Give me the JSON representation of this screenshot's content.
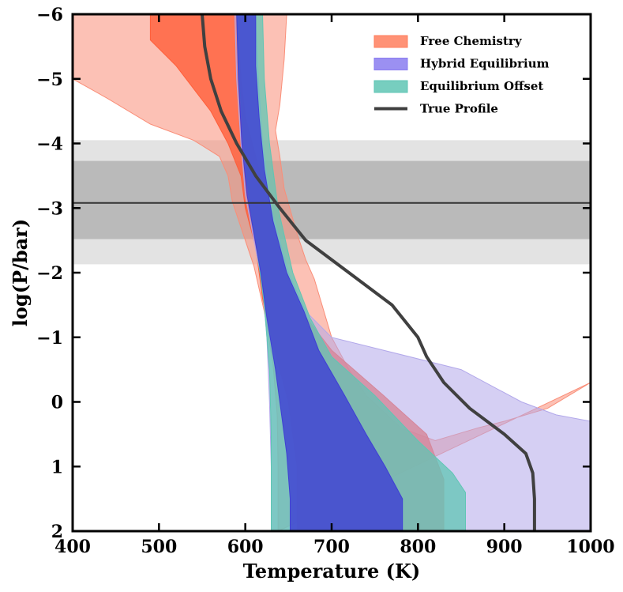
{
  "chart_data": {
    "type": "area",
    "title": "",
    "xlabel": "Temperature (K)",
    "ylabel": "log(P/bar)",
    "xlim": [
      400,
      1000
    ],
    "ylim": [
      2,
      -6
    ],
    "xticks": [
      400,
      500,
      600,
      700,
      800,
      900,
      1000
    ],
    "xtick_labels": [
      "400",
      "500",
      "600",
      "700",
      "800",
      "900",
      "1000"
    ],
    "yticks": [
      -6,
      -5,
      -4,
      -3,
      -2,
      -1,
      0,
      1,
      2
    ],
    "ytick_labels": [
      "−6",
      "−5",
      "−4",
      "−3",
      "−2",
      "−1",
      "0",
      "1",
      "2"
    ],
    "legend_position": "top-right",
    "legend": [
      {
        "label": "Free Chemistry",
        "kind": "patch",
        "color": "#ff7f5e"
      },
      {
        "label": "Hybrid Equilibrium",
        "kind": "patch",
        "color": "#8a7cf0"
      },
      {
        "label": "Equilibrium Offset",
        "kind": "patch",
        "color": "#5fc6b4"
      },
      {
        "label": "True Profile",
        "kind": "line",
        "color": "#404040"
      }
    ],
    "horizontal_bands": [
      {
        "y0": -4.05,
        "y1": -2.13,
        "color": "#d4d4d4",
        "opacity": 0.65
      },
      {
        "y0": -3.73,
        "y1": -2.52,
        "color": "#a8a8a8",
        "opacity": 0.7
      }
    ],
    "horizontal_line": {
      "y": -3.08,
      "color": "#333333"
    },
    "bands": [
      {
        "name": "Free Chemistry outer",
        "color": "#fa8e78",
        "opacity": 0.55,
        "left": [
          [
            400,
            -6
          ],
          [
            400,
            -5
          ],
          [
            440,
            -4.7
          ],
          [
            490,
            -4.3
          ],
          [
            540,
            -4.05
          ],
          [
            570,
            -3.8
          ],
          [
            580,
            -3.5
          ],
          [
            585,
            -3.1
          ],
          [
            595,
            -2.7
          ],
          [
            610,
            -2.1
          ],
          [
            622,
            -1.4
          ],
          [
            632,
            -0.6
          ],
          [
            637,
            0.2
          ],
          [
            638,
            1
          ],
          [
            638,
            2
          ]
        ],
        "right": [
          [
            1000,
            -0.3
          ],
          [
            950,
            0.1
          ],
          [
            900,
            0.3
          ],
          [
            870,
            0.4
          ],
          [
            820,
            0.6
          ],
          [
            780,
            0.4
          ],
          [
            740,
            -0.1
          ],
          [
            720,
            -0.5
          ],
          [
            700,
            -1
          ],
          [
            680,
            -1.9
          ],
          [
            670,
            -2.2
          ],
          [
            660,
            -2.6
          ],
          [
            645,
            -3.3
          ],
          [
            640,
            -3.8
          ],
          [
            635,
            -4.2
          ],
          [
            640,
            -4.6
          ],
          [
            645,
            -5.3
          ],
          [
            648,
            -6
          ]
        ]
      },
      {
        "name": "Free Chemistry inner",
        "color": "#ff5e3a",
        "opacity": 0.8,
        "left": [
          [
            490,
            -6
          ],
          [
            490,
            -5.6
          ],
          [
            520,
            -5.2
          ],
          [
            560,
            -4.5
          ],
          [
            580,
            -4
          ],
          [
            595,
            -3.5
          ],
          [
            600,
            -3
          ],
          [
            612,
            -2.4
          ],
          [
            620,
            -1.6
          ],
          [
            630,
            -1
          ],
          [
            640,
            -0.5
          ],
          [
            650,
            0
          ],
          [
            655,
            0.5
          ],
          [
            660,
            1
          ],
          [
            660,
            1.8
          ],
          [
            660,
            2
          ]
        ],
        "right": [
          [
            830,
            2
          ],
          [
            830,
            1.2
          ],
          [
            810,
            0.5
          ],
          [
            760,
            -0.1
          ],
          [
            700,
            -0.8
          ],
          [
            665,
            -1.4
          ],
          [
            650,
            -1.9
          ],
          [
            640,
            -2.4
          ],
          [
            630,
            -2.9
          ],
          [
            618,
            -3.5
          ],
          [
            608,
            -4
          ],
          [
            600,
            -4.4
          ],
          [
            595,
            -5
          ],
          [
            590,
            -6
          ]
        ]
      },
      {
        "name": "Hybrid Equilibrium outer",
        "color": "#b2a8ea",
        "opacity": 0.55,
        "left": [
          [
            588,
            -6
          ],
          [
            590,
            -5
          ],
          [
            595,
            -4
          ],
          [
            600,
            -3.2
          ],
          [
            610,
            -2.5
          ],
          [
            620,
            -1.8
          ],
          [
            625,
            -1
          ],
          [
            628,
            0
          ],
          [
            630,
            1
          ],
          [
            630,
            2
          ]
        ],
        "right": [
          [
            1000,
            2
          ],
          [
            1000,
            0.3
          ],
          [
            960,
            0.2
          ],
          [
            920,
            0
          ],
          [
            850,
            -0.5
          ],
          [
            760,
            -0.8
          ],
          [
            700,
            -1
          ],
          [
            670,
            -1.4
          ],
          [
            650,
            -2
          ],
          [
            630,
            -3
          ],
          [
            620,
            -4
          ],
          [
            615,
            -5
          ],
          [
            612,
            -6
          ]
        ]
      },
      {
        "name": "Equilibrium Offset",
        "color": "#5fc6b4",
        "opacity": 0.75,
        "left": [
          [
            590,
            -6
          ],
          [
            593,
            -5
          ],
          [
            598,
            -4
          ],
          [
            604,
            -3.2
          ],
          [
            614,
            -2.3
          ],
          [
            622,
            -1.5
          ],
          [
            628,
            -0.5
          ],
          [
            630,
            0.5
          ],
          [
            630,
            2
          ]
        ],
        "right": [
          [
            855,
            2
          ],
          [
            855,
            1.4
          ],
          [
            840,
            1.1
          ],
          [
            800,
            0.6
          ],
          [
            750,
            -0.1
          ],
          [
            700,
            -0.7
          ],
          [
            675,
            -1.3
          ],
          [
            655,
            -2
          ],
          [
            638,
            -3
          ],
          [
            628,
            -4
          ],
          [
            622,
            -5
          ],
          [
            620,
            -6
          ]
        ]
      },
      {
        "name": "Hybrid Equilibrium inner",
        "color": "#3f3fd4",
        "opacity": 0.82,
        "left": [
          [
            590,
            -6
          ],
          [
            592,
            -5
          ],
          [
            596,
            -4
          ],
          [
            602,
            -3.2
          ],
          [
            610,
            -2.6
          ],
          [
            618,
            -2
          ],
          [
            625,
            -1.3
          ],
          [
            635,
            -0.5
          ],
          [
            642,
            0.2
          ],
          [
            648,
            0.8
          ],
          [
            652,
            1.5
          ],
          [
            652,
            2
          ]
        ],
        "right": [
          [
            782,
            2
          ],
          [
            782,
            1.5
          ],
          [
            762,
            1
          ],
          [
            740,
            0.5
          ],
          [
            715,
            -0.1
          ],
          [
            685,
            -0.8
          ],
          [
            668,
            -1.4
          ],
          [
            648,
            -2
          ],
          [
            632,
            -2.8
          ],
          [
            622,
            -3.6
          ],
          [
            616,
            -4.4
          ],
          [
            612,
            -5.2
          ],
          [
            612,
            -6
          ]
        ]
      }
    ],
    "series": [
      {
        "name": "True Profile",
        "type": "line",
        "color": "#404040",
        "points": [
          [
            550,
            -6
          ],
          [
            553,
            -5.5
          ],
          [
            560,
            -5
          ],
          [
            572,
            -4.5
          ],
          [
            590,
            -4
          ],
          [
            612,
            -3.5
          ],
          [
            640,
            -3
          ],
          [
            670,
            -2.5
          ],
          [
            720,
            -2
          ],
          [
            770,
            -1.5
          ],
          [
            800,
            -1
          ],
          [
            810,
            -0.7
          ],
          [
            830,
            -0.3
          ],
          [
            860,
            0.1
          ],
          [
            900,
            0.5
          ],
          [
            925,
            0.8
          ],
          [
            933,
            1.1
          ],
          [
            935,
            1.5
          ],
          [
            935,
            2
          ]
        ]
      }
    ]
  }
}
